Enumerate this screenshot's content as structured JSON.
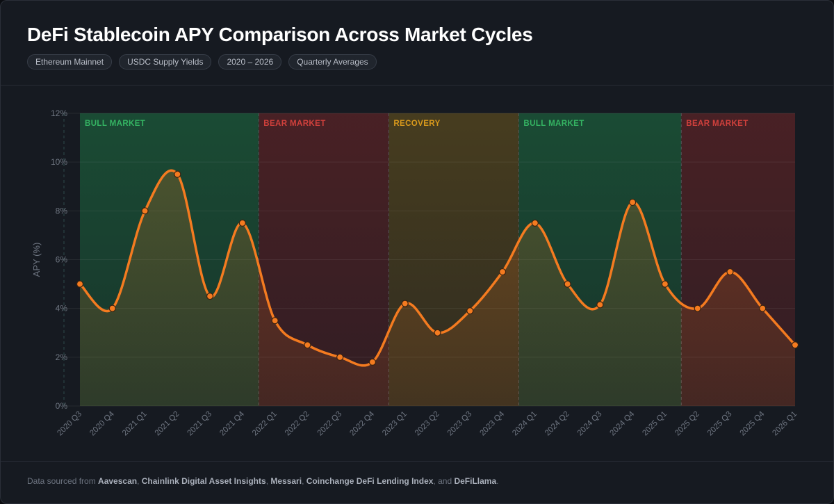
{
  "header": {
    "title": "DeFi Stablecoin APY Comparison Across Market Cycles",
    "tags": [
      "Ethereum Mainnet",
      "USDC Supply Yields",
      "2020 – 2026",
      "Quarterly Averages"
    ]
  },
  "footer": {
    "prefix": "Data sourced from ",
    "sources": [
      "Aavescan",
      "Chainlink Digital Asset Insights",
      "Messari",
      "Coinchange DeFi Lending Index",
      "DeFiLlama"
    ],
    "sep1": ", ",
    "sep2": ", ",
    "sep3": ", ",
    "sep4": ", and ",
    "suffix": "."
  },
  "colors": {
    "line": "#f47b20",
    "bull": "#1f8f4e",
    "bear": "#8f2a2a",
    "recovery": "#8a6c1c",
    "bull_label": "#35b463",
    "bear_label": "#d0403c",
    "recovery_label": "#d99a1c"
  },
  "chart_data": {
    "type": "line",
    "title": "",
    "xlabel": "",
    "ylabel": "APY (%)",
    "ylim": [
      0,
      12
    ],
    "yticks": [
      "0%",
      "2%",
      "4%",
      "6%",
      "8%",
      "10%",
      "12%"
    ],
    "grid": true,
    "categories": [
      "2020 Q3",
      "2020 Q4",
      "2021 Q1",
      "2021 Q2",
      "2021 Q3",
      "2021 Q4",
      "2022 Q1",
      "2022 Q2",
      "2022 Q3",
      "2022 Q4",
      "2023 Q1",
      "2023 Q2",
      "2023 Q3",
      "2023 Q4",
      "2024 Q1",
      "2024 Q2",
      "2024 Q3",
      "2024 Q4",
      "2025 Q1",
      "2025 Q2",
      "2025 Q3",
      "2025 Q4",
      "2026 Q1"
    ],
    "series": [
      {
        "values": [
          5.0,
          4.0,
          8.0,
          9.5,
          4.5,
          7.5,
          3.5,
          2.5,
          2.0,
          1.8,
          4.2,
          3.0,
          3.9,
          5.5,
          7.5,
          5.0,
          4.15,
          8.35,
          5.0,
          4.0,
          5.5,
          4.0,
          2.5
        ]
      }
    ],
    "phases": [
      {
        "label": "BULL MARKET",
        "kind": "bull",
        "start": "2020 Q3",
        "end": "2021 Q4"
      },
      {
        "label": "BEAR MARKET",
        "kind": "bear",
        "start": "2022 Q1",
        "end": "2022 Q4"
      },
      {
        "label": "RECOVERY",
        "kind": "recovery",
        "start": "2023 Q1",
        "end": "2023 Q4"
      },
      {
        "label": "BULL MARKET",
        "kind": "bull",
        "start": "2024 Q1",
        "end": "2025 Q1"
      },
      {
        "label": "BEAR MARKET",
        "kind": "bear",
        "start": "2025 Q2",
        "end": "2026 Q1"
      }
    ]
  }
}
